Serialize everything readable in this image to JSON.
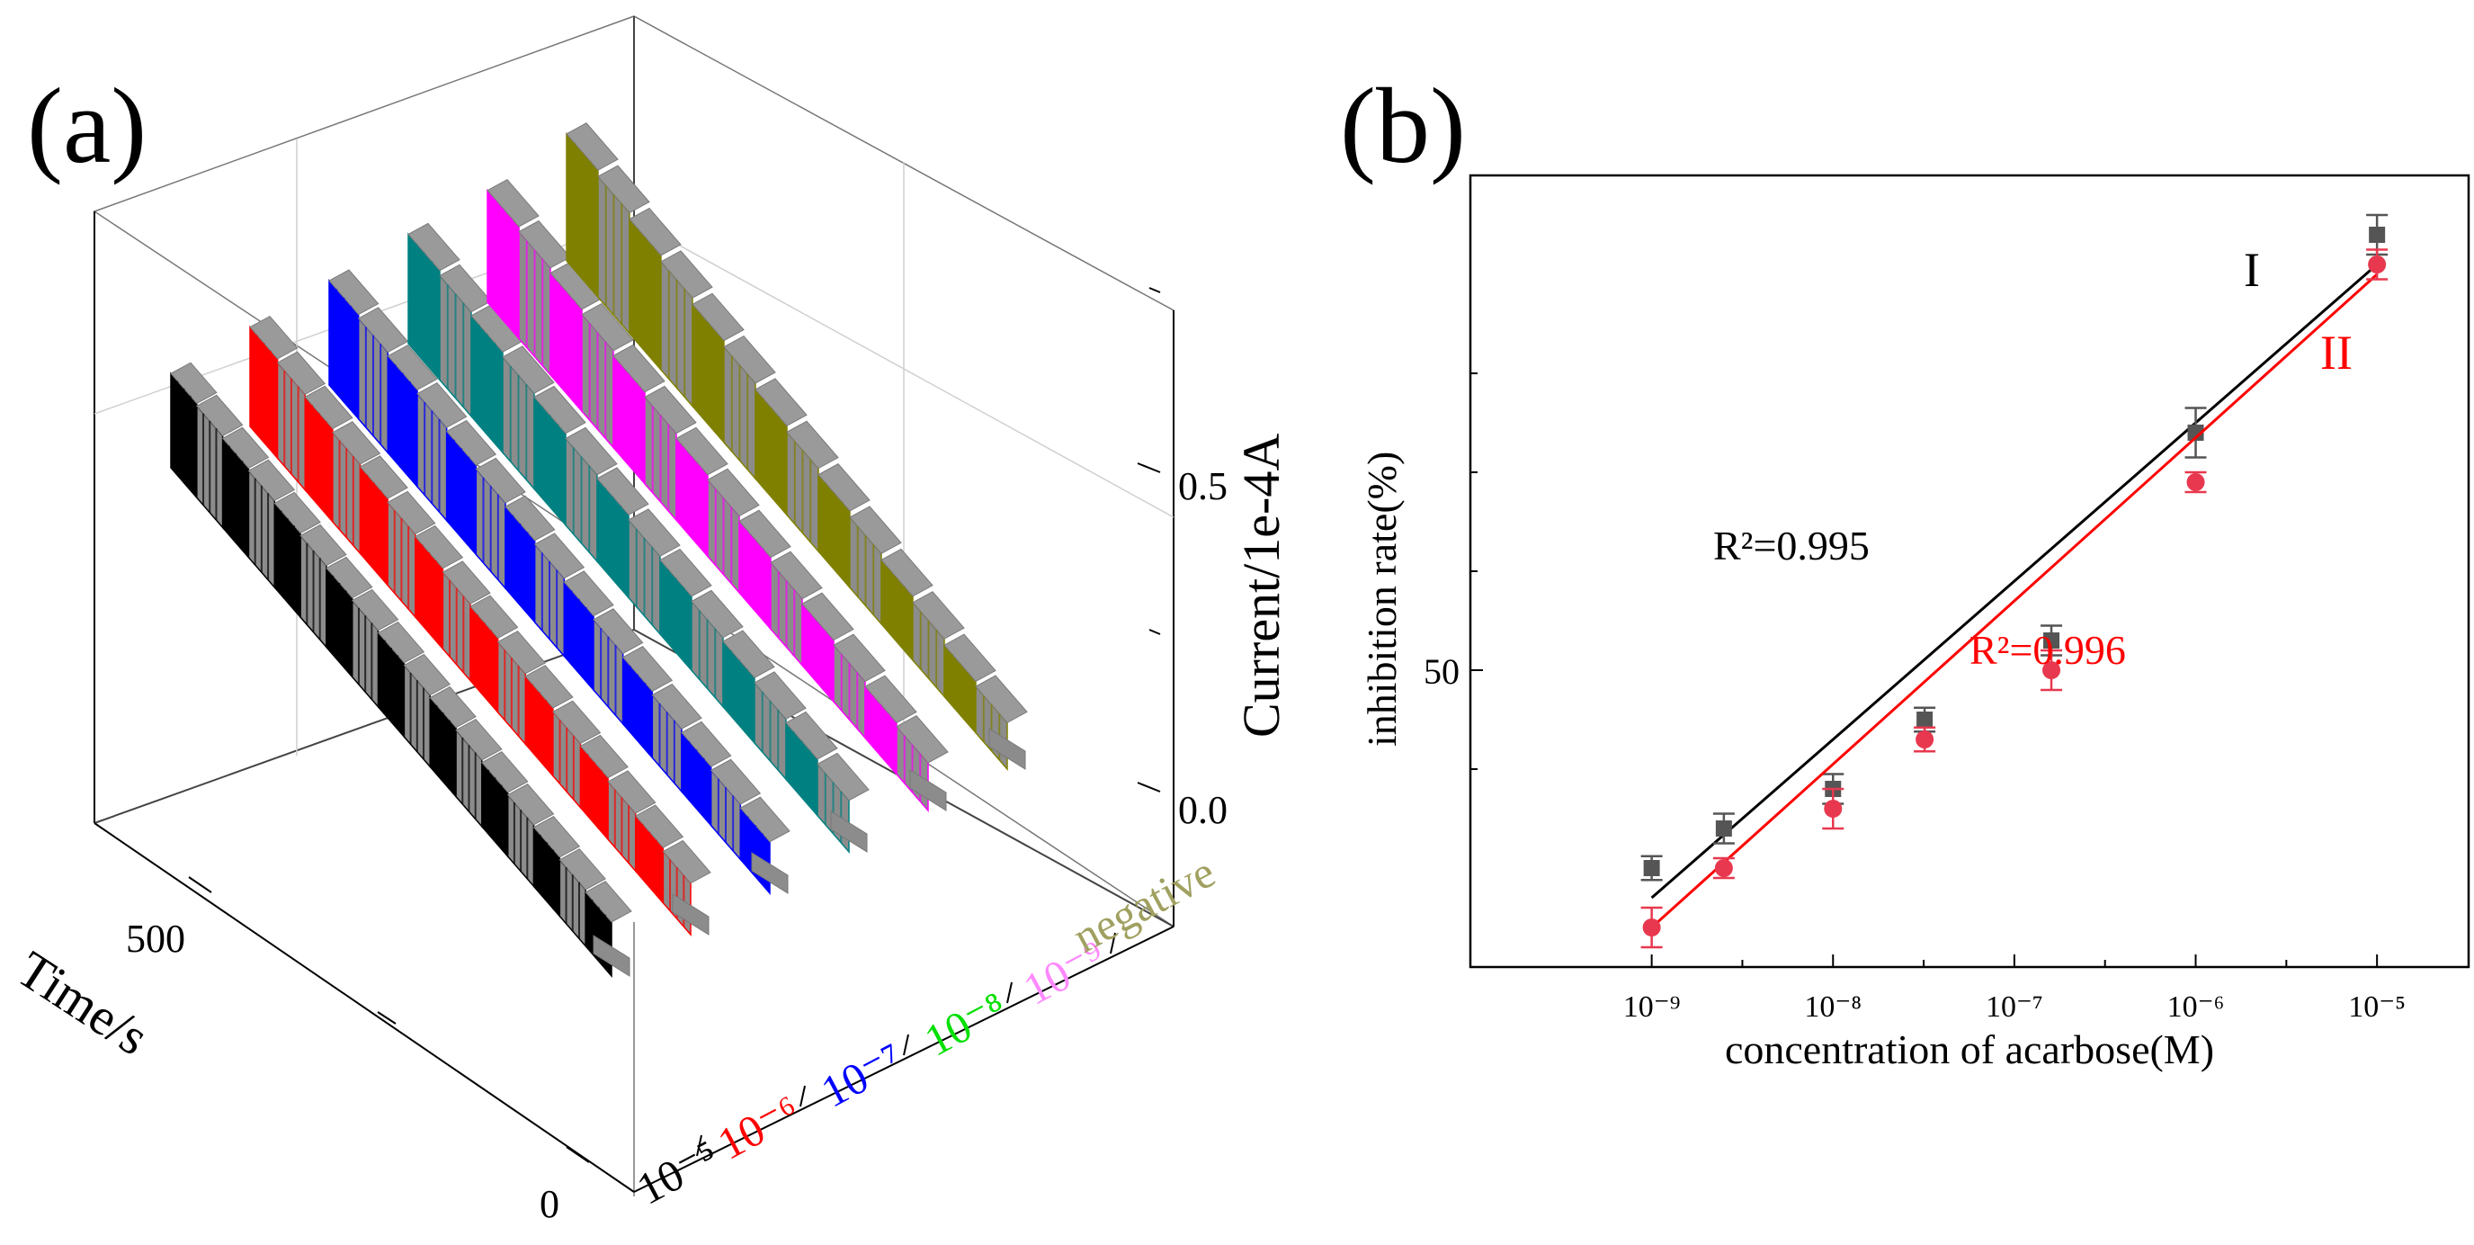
{
  "panels": {
    "a_label": "(a)",
    "b_label": "(b)"
  },
  "colors": {
    "black": "#000000",
    "red": "#ff0000",
    "blue": "#0000ff",
    "teal": "#008080",
    "magenta": "#ff00ff",
    "olive": "#808000",
    "gray": "#8c8c8c",
    "fit_I": "#000000",
    "fit_II": "#ff0000",
    "series_I": "#555555",
    "series_II": "#e8384f",
    "label_green": "#00e000",
    "label_pink": "#ff88ff",
    "label_olive": "#a0a060"
  },
  "chart_data": [
    {
      "type": "3d-waterfall",
      "xlabel": "Time/s",
      "ylabel": "Current/1e-4A",
      "x_ticks": [
        "0",
        "500"
      ],
      "z_ticks": [
        "0.0",
        "0.5"
      ],
      "categories": [
        "10⁻⁵",
        "10⁻⁶",
        "10⁻⁷",
        "10⁻⁸",
        "10⁻⁹",
        "negative"
      ],
      "series_colors": [
        "#000000",
        "#ff0000",
        "#0000ff",
        "#008080",
        "#ff00ff",
        "#808000"
      ],
      "category_label_colors": [
        "#000000",
        "#ff0000",
        "#0000ff",
        "#00e000",
        "#ff88ff",
        "#a0a060"
      ],
      "step_levels": [
        [
          0.42,
          0.4,
          0.38,
          0.36,
          0.34,
          0.32,
          0.3,
          0.28,
          0.26,
          0.24,
          0.22,
          0.2,
          0.18,
          0.16,
          0.14,
          0.12,
          0.1
        ],
        [
          0.46,
          0.43,
          0.41,
          0.38,
          0.36,
          0.33,
          0.31,
          0.28,
          0.26,
          0.23,
          0.21,
          0.18,
          0.16,
          0.13,
          0.11,
          0.08
        ],
        [
          0.5,
          0.47,
          0.44,
          0.41,
          0.38,
          0.35,
          0.32,
          0.29,
          0.26,
          0.23,
          0.2,
          0.17,
          0.14,
          0.11,
          0.08
        ],
        [
          0.54,
          0.5,
          0.47,
          0.43,
          0.4,
          0.36,
          0.33,
          0.29,
          0.26,
          0.22,
          0.19,
          0.15,
          0.12,
          0.08
        ],
        [
          0.56,
          0.52,
          0.48,
          0.44,
          0.4,
          0.36,
          0.32,
          0.28,
          0.24,
          0.2,
          0.16,
          0.12,
          0.08,
          0.05
        ],
        [
          0.68,
          0.63,
          0.58,
          0.53,
          0.48,
          0.43,
          0.38,
          0.33,
          0.28,
          0.23,
          0.18,
          0.13,
          0.08,
          0.04
        ]
      ]
    },
    {
      "type": "scatter",
      "xlabel": "concentration of acarbose(M)",
      "ylabel": "inhibition rate(%)",
      "x_scale": "log",
      "x_ticks": [
        "10⁻⁹",
        "10⁻⁸",
        "10⁻⁷",
        "10⁻⁶",
        "10⁻⁵"
      ],
      "x_tick_exponents": [
        -9,
        -8,
        -7,
        -6,
        -5
      ],
      "y_tick_label": "50",
      "xlim": [
        1e-10,
        3.2e-05
      ],
      "ylim": [
        20,
        100
      ],
      "series": [
        {
          "name": "I",
          "x": [
            1e-09,
            2.5e-09,
            1e-08,
            3.2e-08,
            1.6e-07,
            1e-06,
            1e-05
          ],
          "y": [
            30,
            34,
            38,
            45,
            53,
            74,
            94
          ],
          "err": [
            1.2,
            1.5,
            1.5,
            1.2,
            1.5,
            2.5,
            2.0
          ],
          "r2": "R²=0.995",
          "fit": [
            [
              1e-09,
              27
            ],
            [
              1e-05,
              91
            ]
          ]
        },
        {
          "name": "II",
          "x": [
            1e-09,
            2.5e-09,
            1e-08,
            3.2e-08,
            1.6e-07,
            1e-06,
            1e-05
          ],
          "y": [
            24,
            30,
            36,
            43,
            50,
            69,
            91
          ],
          "err": [
            2.0,
            1.0,
            2.0,
            1.2,
            2.0,
            1.0,
            1.5
          ],
          "r2": "R²=0.996",
          "fit": [
            [
              1e-09,
              24
            ],
            [
              1e-05,
              90
            ]
          ]
        }
      ]
    }
  ]
}
